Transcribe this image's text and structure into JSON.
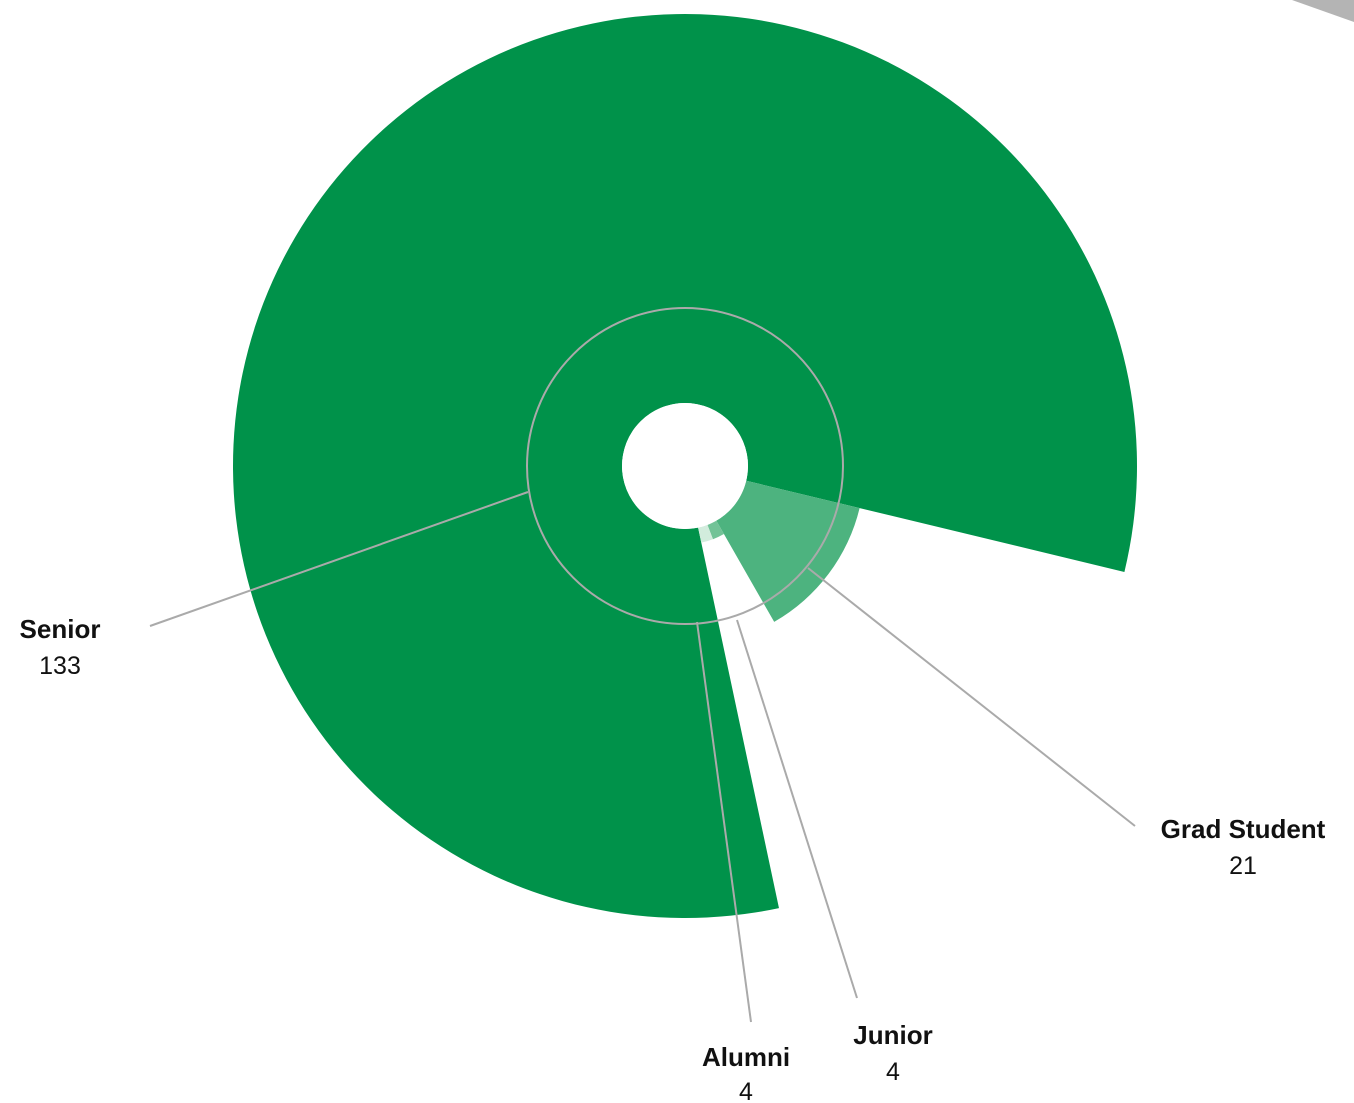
{
  "chart_data": {
    "type": "pie",
    "variant": "polar-area",
    "title": "",
    "slices": [
      {
        "label": "Senior",
        "value": 133,
        "color": "#00924a"
      },
      {
        "label": "Grad Student",
        "value": 21,
        "color": "#4db37f"
      },
      {
        "label": "Junior",
        "value": 4,
        "color": "#72c397"
      },
      {
        "label": "Alumni",
        "value": 4,
        "color": "#d2ecdd"
      }
    ],
    "background_color": "#ffffff",
    "leader_line_color": "#aaaaaa",
    "reference_ring_color": "#aaaaaa"
  }
}
